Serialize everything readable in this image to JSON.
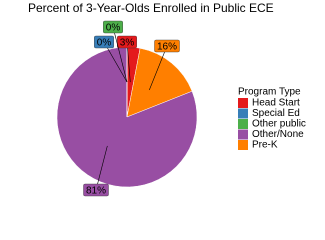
{
  "chart_data": {
    "type": "pie",
    "title": "Percent of 3-Year-Olds Enrolled in Public ECE",
    "legend_title": "Program Type",
    "legend": "right",
    "series": [
      {
        "name": "Head Start",
        "color": "#e41a1c",
        "values": [
          3
        ],
        "value_labels": [
          "3%"
        ]
      },
      {
        "name": "Special Ed",
        "color": "#377eb8",
        "values": [
          0
        ],
        "value_labels": [
          "0%"
        ]
      },
      {
        "name": "Other public",
        "color": "#4daf4a",
        "values": [
          0
        ],
        "value_labels": [
          "0%"
        ]
      },
      {
        "name": "Other/None",
        "color": "#984ea3",
        "values": [
          81
        ],
        "value_labels": [
          "81%"
        ]
      },
      {
        "name": "Pre-K",
        "color": "#ff7f00",
        "values": [
          16
        ],
        "value_labels": [
          "16%"
        ]
      }
    ]
  }
}
